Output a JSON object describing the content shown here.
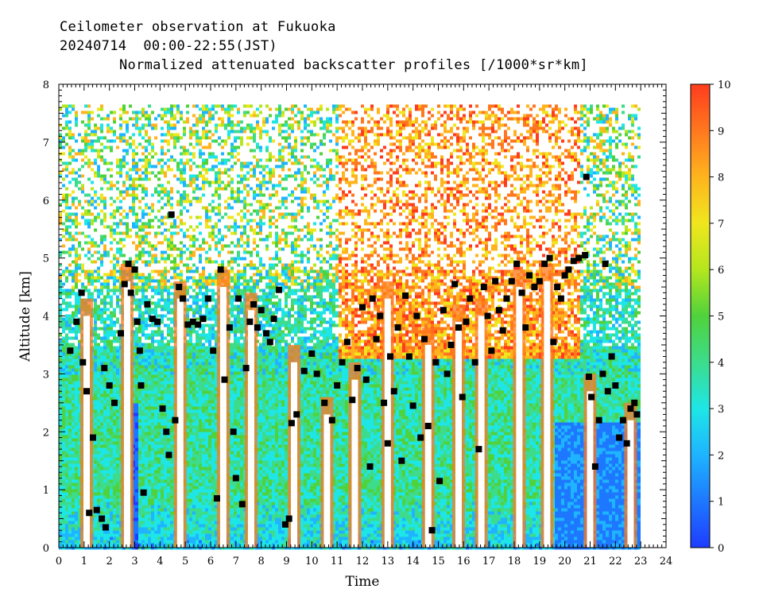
{
  "header": {
    "line1": "Ceilometer observation at Fukuoka",
    "line2": "20240714  00:00-22:55(JST)",
    "line3": "Normalized attenuated backscatter profiles [/1000*sr*km]"
  },
  "chart_data": {
    "type": "heatmap",
    "title": "Normalized attenuated backscatter profiles [/1000*sr*km]",
    "xlabel": "Time",
    "ylabel": "Altitude [km]",
    "xlim": [
      0,
      24
    ],
    "ylim": [
      0,
      8
    ],
    "x_ticks": [
      "0",
      "1",
      "2",
      "3",
      "4",
      "5",
      "6",
      "7",
      "8",
      "9",
      "10",
      "11",
      "12",
      "13",
      "14",
      "15",
      "16",
      "17",
      "18",
      "19",
      "20",
      "21",
      "22",
      "23",
      "24"
    ],
    "y_ticks": [
      "0",
      "1",
      "2",
      "3",
      "4",
      "5",
      "6",
      "7",
      "8"
    ],
    "data_extent_x": [
      0,
      22.92
    ],
    "data_extent_y": [
      0,
      7.65
    ],
    "colorbar": {
      "range": [
        0,
        10
      ],
      "ticks": [
        "0",
        "1",
        "2",
        "3",
        "4",
        "5",
        "6",
        "7",
        "8",
        "9",
        "10"
      ],
      "colors": [
        "#1e3cff",
        "#1e78ff",
        "#1eb4ff",
        "#1ee6e6",
        "#3cdc8c",
        "#50d23c",
        "#b4e61e",
        "#f0e61e",
        "#ffb41e",
        "#ff781e",
        "#ff3c1e"
      ]
    },
    "cloud_base_markers": {
      "label": "black squares",
      "points": [
        [
          0.45,
          3.4
        ],
        [
          0.7,
          3.9
        ],
        [
          0.9,
          4.4
        ],
        [
          0.95,
          3.2
        ],
        [
          1.1,
          2.7
        ],
        [
          1.2,
          0.6
        ],
        [
          1.35,
          1.9
        ],
        [
          1.5,
          0.65
        ],
        [
          1.7,
          0.5
        ],
        [
          1.85,
          0.35
        ],
        [
          1.8,
          3.1
        ],
        [
          2.0,
          2.8
        ],
        [
          2.2,
          2.5
        ],
        [
          2.45,
          3.7
        ],
        [
          2.6,
          4.55
        ],
        [
          2.75,
          4.9
        ],
        [
          2.85,
          4.4
        ],
        [
          3.0,
          4.8
        ],
        [
          3.1,
          3.9
        ],
        [
          3.2,
          3.4
        ],
        [
          3.25,
          2.8
        ],
        [
          3.35,
          0.95
        ],
        [
          3.5,
          4.2
        ],
        [
          3.7,
          3.95
        ],
        [
          3.9,
          3.9
        ],
        [
          4.1,
          2.4
        ],
        [
          4.25,
          2.0
        ],
        [
          4.35,
          1.6
        ],
        [
          4.45,
          5.75
        ],
        [
          4.6,
          2.2
        ],
        [
          4.75,
          4.5
        ],
        [
          4.9,
          4.3
        ],
        [
          5.1,
          3.85
        ],
        [
          5.3,
          3.9
        ],
        [
          5.5,
          3.85
        ],
        [
          5.7,
          3.95
        ],
        [
          5.9,
          4.3
        ],
        [
          6.1,
          3.4
        ],
        [
          6.25,
          0.85
        ],
        [
          6.4,
          4.8
        ],
        [
          6.55,
          2.9
        ],
        [
          6.75,
          3.8
        ],
        [
          6.9,
          2.0
        ],
        [
          7.0,
          1.2
        ],
        [
          7.1,
          4.3
        ],
        [
          7.25,
          0.75
        ],
        [
          7.4,
          3.1
        ],
        [
          7.55,
          3.9
        ],
        [
          7.7,
          4.2
        ],
        [
          7.85,
          3.8
        ],
        [
          8.0,
          4.1
        ],
        [
          8.2,
          3.7
        ],
        [
          8.35,
          3.55
        ],
        [
          8.5,
          3.95
        ],
        [
          8.7,
          4.45
        ],
        [
          8.95,
          0.4
        ],
        [
          9.1,
          0.5
        ],
        [
          9.2,
          2.15
        ],
        [
          9.4,
          2.3
        ],
        [
          9.7,
          3.05
        ],
        [
          10.0,
          3.35
        ],
        [
          10.2,
          3.0
        ],
        [
          10.5,
          2.5
        ],
        [
          10.8,
          2.2
        ],
        [
          11.0,
          2.8
        ],
        [
          11.2,
          3.2
        ],
        [
          11.4,
          3.55
        ],
        [
          11.6,
          2.55
        ],
        [
          11.8,
          3.1
        ],
        [
          12.0,
          4.15
        ],
        [
          12.15,
          2.9
        ],
        [
          12.3,
          1.4
        ],
        [
          12.4,
          4.3
        ],
        [
          12.55,
          3.6
        ],
        [
          12.7,
          4.0
        ],
        [
          12.85,
          2.5
        ],
        [
          13.0,
          1.8
        ],
        [
          13.1,
          3.3
        ],
        [
          13.25,
          2.7
        ],
        [
          13.4,
          3.8
        ],
        [
          13.55,
          1.5
        ],
        [
          13.7,
          4.35
        ],
        [
          13.85,
          3.3
        ],
        [
          14.0,
          2.45
        ],
        [
          14.15,
          4.0
        ],
        [
          14.3,
          1.9
        ],
        [
          14.45,
          3.6
        ],
        [
          14.6,
          2.1
        ],
        [
          14.75,
          0.3
        ],
        [
          14.9,
          3.2
        ],
        [
          15.05,
          1.15
        ],
        [
          15.2,
          4.1
        ],
        [
          15.35,
          3.0
        ],
        [
          15.5,
          3.5
        ],
        [
          15.65,
          4.55
        ],
        [
          15.8,
          3.8
        ],
        [
          15.95,
          2.6
        ],
        [
          16.1,
          3.9
        ],
        [
          16.25,
          4.3
        ],
        [
          16.45,
          3.2
        ],
        [
          16.6,
          1.7
        ],
        [
          16.8,
          4.5
        ],
        [
          16.95,
          4.0
        ],
        [
          17.1,
          3.4
        ],
        [
          17.25,
          4.6
        ],
        [
          17.4,
          4.1
        ],
        [
          17.55,
          3.75
        ],
        [
          17.7,
          4.3
        ],
        [
          17.9,
          4.6
        ],
        [
          18.1,
          4.9
        ],
        [
          18.3,
          4.4
        ],
        [
          18.45,
          3.8
        ],
        [
          18.6,
          4.7
        ],
        [
          18.8,
          4.5
        ],
        [
          19.0,
          4.6
        ],
        [
          19.2,
          4.9
        ],
        [
          19.4,
          5.0
        ],
        [
          19.55,
          3.55
        ],
        [
          19.7,
          4.5
        ],
        [
          19.85,
          4.3
        ],
        [
          20.0,
          4.7
        ],
        [
          20.15,
          4.8
        ],
        [
          20.35,
          4.95
        ],
        [
          20.55,
          5.0
        ],
        [
          20.8,
          5.05
        ],
        [
          20.85,
          6.4
        ],
        [
          20.95,
          2.95
        ],
        [
          21.05,
          2.6
        ],
        [
          21.2,
          1.4
        ],
        [
          21.35,
          2.2
        ],
        [
          21.5,
          3.0
        ],
        [
          21.6,
          4.9
        ],
        [
          21.7,
          2.7
        ],
        [
          21.85,
          3.3
        ],
        [
          22.0,
          2.8
        ],
        [
          22.15,
          1.9
        ],
        [
          22.3,
          2.2
        ],
        [
          22.45,
          1.8
        ],
        [
          22.6,
          2.4
        ],
        [
          22.75,
          2.5
        ],
        [
          22.85,
          2.3
        ]
      ]
    },
    "grid": false,
    "legend": "colorbar right"
  }
}
